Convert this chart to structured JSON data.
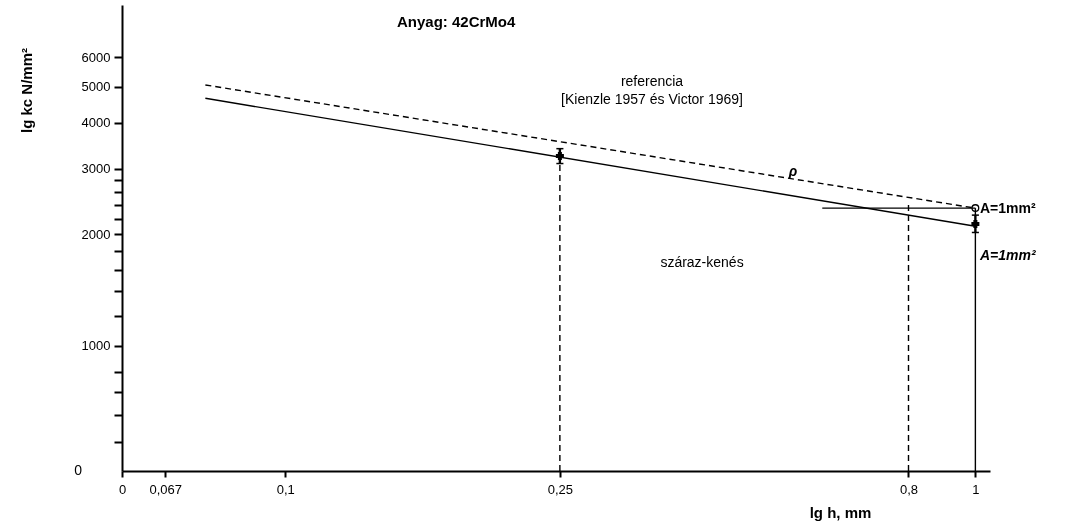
{
  "chart_data": {
    "type": "line",
    "title": "Anyag: 42CrMo4",
    "xlabel": "lg h, mm",
    "ylabel": "lg kc  N/mm²",
    "log": "xy",
    "grid": false,
    "xlim": [
      0.058,
      1.05
    ],
    "xticks": [
      {
        "value": 0.058,
        "label": "0"
      },
      {
        "value": 0.067,
        "label": "0,067"
      },
      {
        "value": 0.1,
        "label": "0,1"
      },
      {
        "value": 0.25,
        "label": "0,25"
      },
      {
        "value": 0.8,
        "label": "0,8"
      },
      1
    ],
    "ylim": [
      459,
      8300
    ],
    "yticks": [
      {
        "value": 550,
        "label": null
      },
      {
        "value": 650,
        "label": null
      },
      {
        "value": 750,
        "label": null
      },
      {
        "value": 850,
        "label": null
      },
      1000,
      {
        "value": 1200,
        "label": null
      },
      {
        "value": 1400,
        "label": null
      },
      {
        "value": 1600,
        "label": null
      },
      {
        "value": 1800,
        "label": null
      },
      2000,
      {
        "value": 2200,
        "label": null
      },
      {
        "value": 2400,
        "label": null
      },
      {
        "value": 2600,
        "label": null
      },
      {
        "value": 2800,
        "label": null
      },
      3000,
      4000,
      5000,
      6000
    ],
    "series": [
      {
        "type": "line",
        "color": "#000000",
        "line_style": "solid",
        "x": [
          0.0766,
          1
        ],
        "values": [
          4650,
          2100
        ]
      },
      {
        "type": "line",
        "color": "#000000",
        "line_style": "dashed",
        "x": [
          0.0766,
          1
        ],
        "values": [
          5050,
          2350
        ]
      },
      {
        "type": "scatter",
        "color": "#000000",
        "marker": "cross",
        "x": [
          0.25,
          1
        ],
        "values": [
          3250,
          2130
        ],
        "errors": [
          [
            3100,
            3400
          ],
          [
            2020,
            2250
          ]
        ]
      },
      {
        "type": "scatter",
        "color": "#000000",
        "marker": "circle",
        "x": [
          1
        ],
        "values": [
          2350
        ]
      },
      {
        "type": "line",
        "color": "#000000",
        "line_style": "dashed",
        "x": [
          0.25,
          0.25
        ],
        "values": [
          459,
          3250
        ]
      },
      {
        "type": "line",
        "color": "#000000",
        "line_style": "dashed",
        "x": [
          0.8,
          0.8
        ],
        "values": [
          459,
          2450
        ]
      },
      {
        "type": "line",
        "color": "#000000",
        "line_style": "solid",
        "x": [
          1,
          1
        ],
        "values": [
          459,
          2020
        ]
      },
      {
        "type": "line",
        "color": "#000000",
        "line_style": "solid",
        "x": [
          1,
          1
        ],
        "values": [
          2250,
          2350
        ]
      },
      {
        "type": "line",
        "color": "#000000",
        "line_style": "solid",
        "x": [
          0.6,
          1
        ],
        "values": [
          2350,
          2350
        ]
      }
    ],
    "annotations": [
      "referencia",
      "[Kienzle 1957 és Victor 1969]",
      "száraz-kenés",
      "ρ",
      "A=1mm²",
      "A=1mm²",
      "0"
    ]
  }
}
